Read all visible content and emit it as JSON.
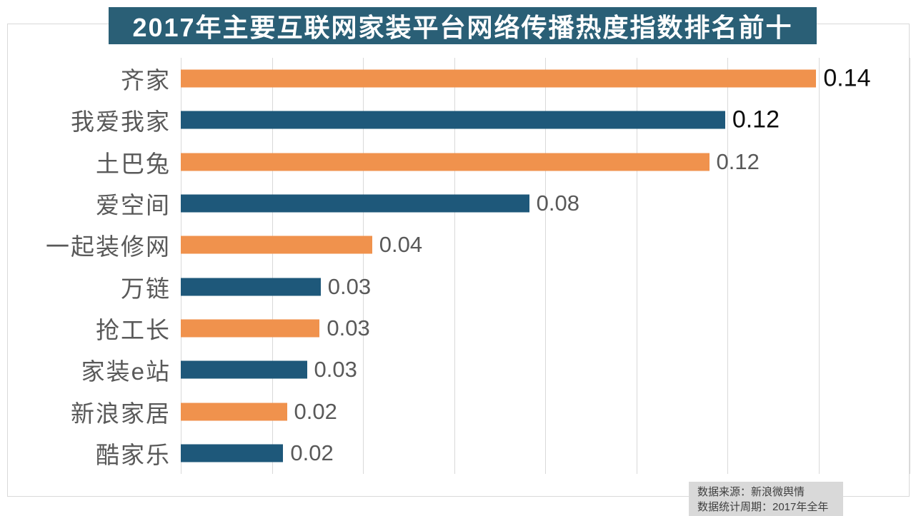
{
  "title": "2017年主要互联网家装平台网络传播热度指数排名前十",
  "chart_data": {
    "type": "bar",
    "orientation": "horizontal",
    "title": "2017年主要互联网家装平台网络传播热度指数排名前十",
    "categories": [
      "齐家",
      "我爱我家",
      "土巴兔",
      "爱空间",
      "一起装修网",
      "万链",
      "抢工长",
      "家装e站",
      "新浪家居",
      "酷家乐"
    ],
    "values": [
      0.14,
      0.12,
      0.12,
      0.08,
      0.04,
      0.03,
      0.03,
      0.03,
      0.02,
      0.02
    ],
    "value_labels": [
      "0.14",
      "0.12",
      "0.12",
      "0.08",
      "0.04",
      "0.03",
      "0.03",
      "0.03",
      "0.02",
      "0.02"
    ],
    "values_precise": [
      0.1395,
      0.1195,
      0.116,
      0.0765,
      0.042,
      0.0307,
      0.0305,
      0.0277,
      0.0233,
      0.0225
    ],
    "bar_colors": [
      "#F0924D",
      "#1E587A",
      "#F0924D",
      "#1E587A",
      "#F0924D",
      "#1E587A",
      "#F0924D",
      "#1E587A",
      "#F0924D",
      "#1E587A"
    ],
    "value_label_colors": [
      "#0D0D0D",
      "#0D0D0D",
      "#595959",
      "#595959",
      "#595959",
      "#595959",
      "#595959",
      "#595959",
      "#595959",
      "#595959"
    ],
    "xlabel": "",
    "ylabel": "",
    "xlim": [
      0,
      0.16
    ],
    "gridline_interval": 0.02,
    "grid": "vertical-only",
    "legend_position": "none"
  },
  "colors": {
    "title_background": "#2A5F76",
    "title_text": "#FFFFFF",
    "orange_series": "#F0924D",
    "blue_series": "#1E587A",
    "gridline": "#D9D9D9",
    "frame_border": "#D9D9D9",
    "category_text": "#595959",
    "source_box_background": "#D9D9D9",
    "source_text": "#404040"
  },
  "source": {
    "line1": "数据来源：新浪微舆情",
    "line2": "数据统计周期：2017年全年"
  }
}
